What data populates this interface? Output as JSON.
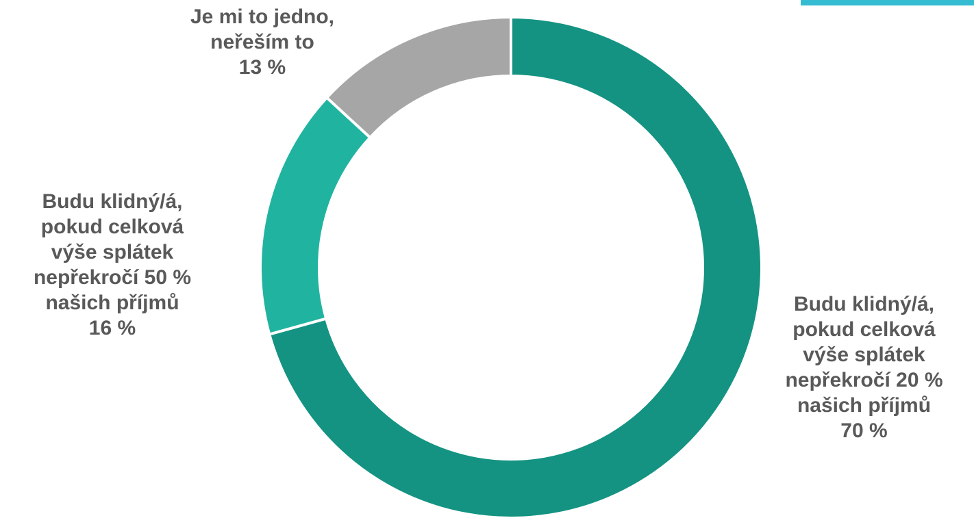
{
  "chart_data": {
    "type": "pie",
    "donut": true,
    "slices": [
      {
        "label": "Budu klidný/á, pokud celková výše splátek nepřekročí 20 % našich příjmů",
        "display": "Budu klidný/á,\npokud celková\nvýše splátek\nnepřekročí 20 %\nnašich příjmů\n70 %",
        "value": 70,
        "color": "#149382"
      },
      {
        "label": "Budu klidný/á, pokud celková výše splátek nepřekročí 50 % našich příjmů",
        "display": "Budu klidný/á,\npokud celková\nvýše splátek\nnepřekročí 50 %\nnašich příjmů\n16 %",
        "value": 16,
        "color": "#20b4a0"
      },
      {
        "label": "Je mi to jedno, neřeším to",
        "display": "Je mi to jedno,\nneřeším to\n13 %",
        "value": 13,
        "color": "#a6a6a6"
      }
    ],
    "legend": "none"
  },
  "colors": {
    "accent_bar": "#35bcd2",
    "label_text": "#595959"
  }
}
